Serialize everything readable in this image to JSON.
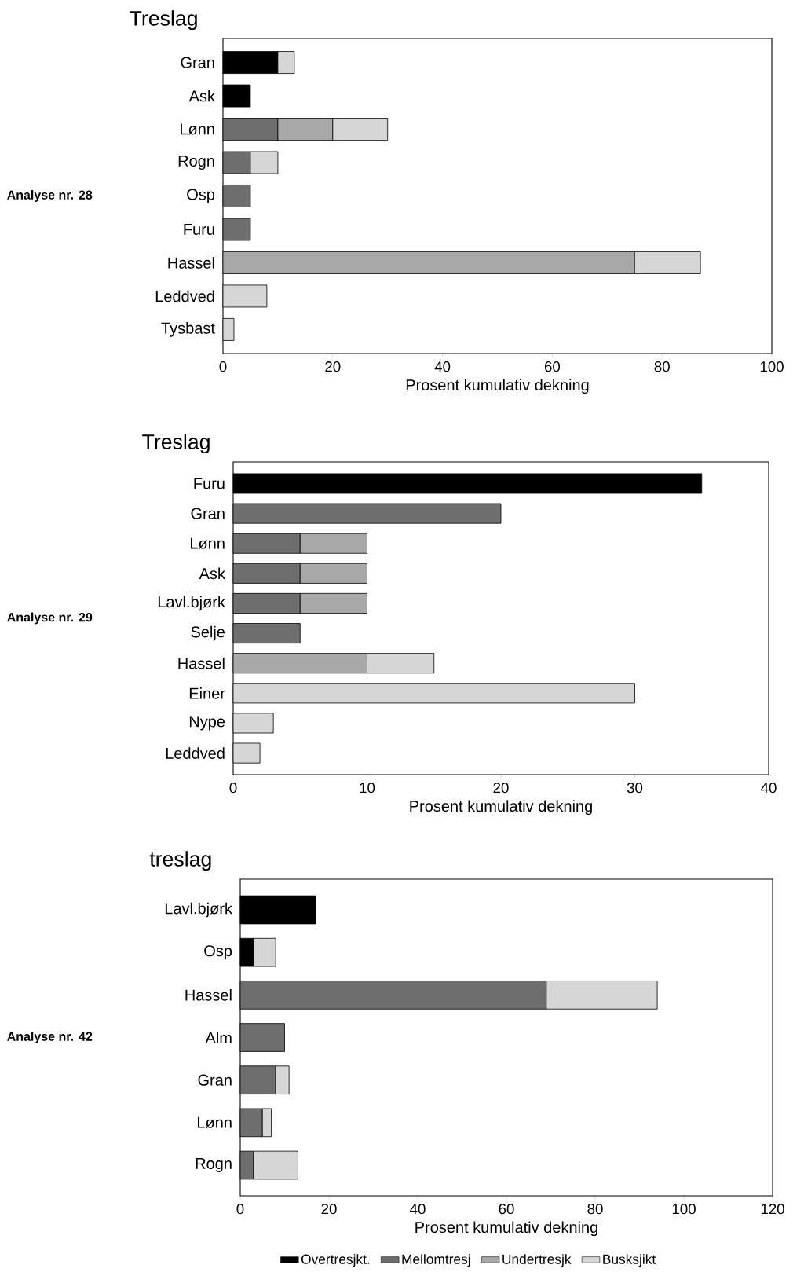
{
  "chart_data": [
    {
      "type": "bar",
      "orientation": "horizontal",
      "stacked": true,
      "title": "Treslag",
      "xlabel": "Prosent kumulativ dekning",
      "annotations": [
        "Analyse nr. 28"
      ],
      "categories": [
        "Gran",
        "Ask",
        "Lønn",
        "Rogn",
        "Osp",
        "Furu",
        "Hassel",
        "Leddved",
        "Tysbast"
      ],
      "xlim": [
        0,
        100
      ],
      "xticks": [
        0,
        20,
        40,
        60,
        80,
        100
      ],
      "series": [
        {
          "color": "#000000",
          "values": [
            10,
            5,
            null,
            null,
            null,
            null,
            null,
            null,
            null
          ]
        },
        {
          "color": "#6e6e6e",
          "values": [
            null,
            null,
            10,
            5,
            5,
            5,
            null,
            null,
            null
          ]
        },
        {
          "color": "#a8a8a8",
          "values": [
            null,
            null,
            10,
            null,
            null,
            null,
            75,
            null,
            null
          ]
        },
        {
          "color": "#d6d6d6",
          "values": [
            3,
            null,
            10,
            5,
            null,
            null,
            12,
            8,
            2
          ]
        }
      ]
    },
    {
      "type": "bar",
      "orientation": "horizontal",
      "stacked": true,
      "title": "Treslag",
      "xlabel": "Prosent kumulativ dekning",
      "annotations": [
        "Analyse nr. 29"
      ],
      "categories": [
        "Furu",
        "Gran",
        "Lønn",
        "Ask",
        "Lavl.bjørk",
        "Selje",
        "Hassel",
        "Einer",
        "Nype",
        "Leddved"
      ],
      "xlim": [
        0,
        40
      ],
      "xticks": [
        0,
        10,
        20,
        30,
        40
      ],
      "series": [
        {
          "color": "#000000",
          "values": [
            35,
            null,
            null,
            null,
            null,
            null,
            null,
            null,
            null,
            null
          ]
        },
        {
          "color": "#6e6e6e",
          "values": [
            null,
            20,
            5,
            5,
            5,
            5,
            null,
            null,
            null,
            null
          ]
        },
        {
          "color": "#a8a8a8",
          "values": [
            null,
            null,
            5,
            5,
            5,
            null,
            10,
            null,
            null,
            null
          ]
        },
        {
          "color": "#d6d6d6",
          "values": [
            null,
            null,
            null,
            null,
            null,
            null,
            5,
            30,
            3,
            2
          ]
        }
      ]
    },
    {
      "type": "bar",
      "orientation": "horizontal",
      "stacked": true,
      "title": "treslag",
      "xlabel": "Prosent kumulativ dekning",
      "annotations": [
        "Analyse nr. 42"
      ],
      "legend": "bottom",
      "categories": [
        "Lavl.bjørk",
        "Osp",
        "Hassel",
        "Alm",
        "Gran",
        "Lønn",
        "Rogn"
      ],
      "xlim": [
        0,
        120
      ],
      "xticks": [
        0,
        20,
        40,
        60,
        80,
        100,
        120
      ],
      "series": [
        {
          "name": "Overtresjkt.",
          "color": "#000000",
          "values": [
            17,
            3,
            null,
            null,
            null,
            null,
            null
          ]
        },
        {
          "name": "Mellomtresj",
          "color": "#6e6e6e",
          "values": [
            null,
            null,
            69,
            10,
            8,
            5,
            3
          ]
        },
        {
          "name": "Undertresjk",
          "color": "#a8a8a8",
          "values": [
            null,
            null,
            null,
            null,
            null,
            null,
            null
          ]
        },
        {
          "name": "Busksjikt",
          "color": "#d6d6d6",
          "values": [
            null,
            5,
            25,
            null,
            3,
            2,
            10
          ]
        }
      ]
    }
  ]
}
